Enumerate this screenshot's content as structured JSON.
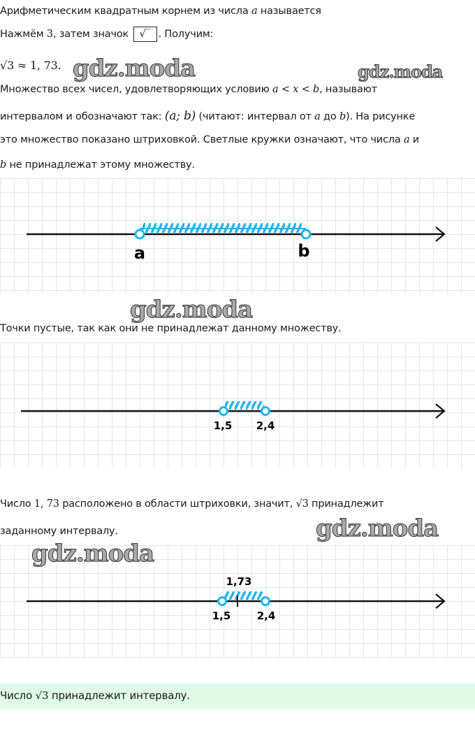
{
  "text": {
    "l1a": "Арифметическим квадратным корнем из числа ",
    "l1var": "a",
    "l1b": " называется",
    "l2a": "Нажмём ",
    "l2num": "3",
    "l2b": ", затем значок ",
    "l2key": "√‾",
    "l2c": ". Получим:",
    "l3": "√3 ≈ 1, 73.",
    "p1a": "Множество всех чисел, удовлетворяющих условию ",
    "p1m": "a < x < b",
    "p1b": ", называют",
    "p2a": "интервалом и обозначают так: ",
    "p2m": "(a;  b)",
    "p2b": " (читают: интервал от ",
    "p2c": "a",
    "p2d": " до ",
    "p2e": "b",
    "p2f": "). На рисунке",
    "p3a": "это множество показано штриховкой. Светлые кружки означают, что числа ",
    "p3b": "a",
    "p3c": " и",
    "p4a": "b",
    "p4b": " не принадлежат этому множеству.",
    "s1": "Точки пустые, так как они не принадлежат данному множеству.",
    "s2a": "Число ",
    "s2m": "1, 73",
    "s2b": " расположено в области штриховки, значит, ",
    "s2r": "√3",
    "s2c": " принадлежит",
    "s3": "заданному интервалу.",
    "ans_a": "Число ",
    "ans_r": "√3",
    "ans_b": " принадлежит интервалу."
  },
  "watermark": "gdz.moda",
  "figures": [
    {
      "left_label": "a",
      "right_label": "b"
    },
    {
      "left_label": "1,5",
      "right_label": "2,4"
    },
    {
      "left_label": "1,5",
      "right_label": "2,4",
      "point_label": "1,73"
    }
  ],
  "colors": {
    "accent": "#1fb4f0",
    "answer_bg": "#dffbe7"
  }
}
